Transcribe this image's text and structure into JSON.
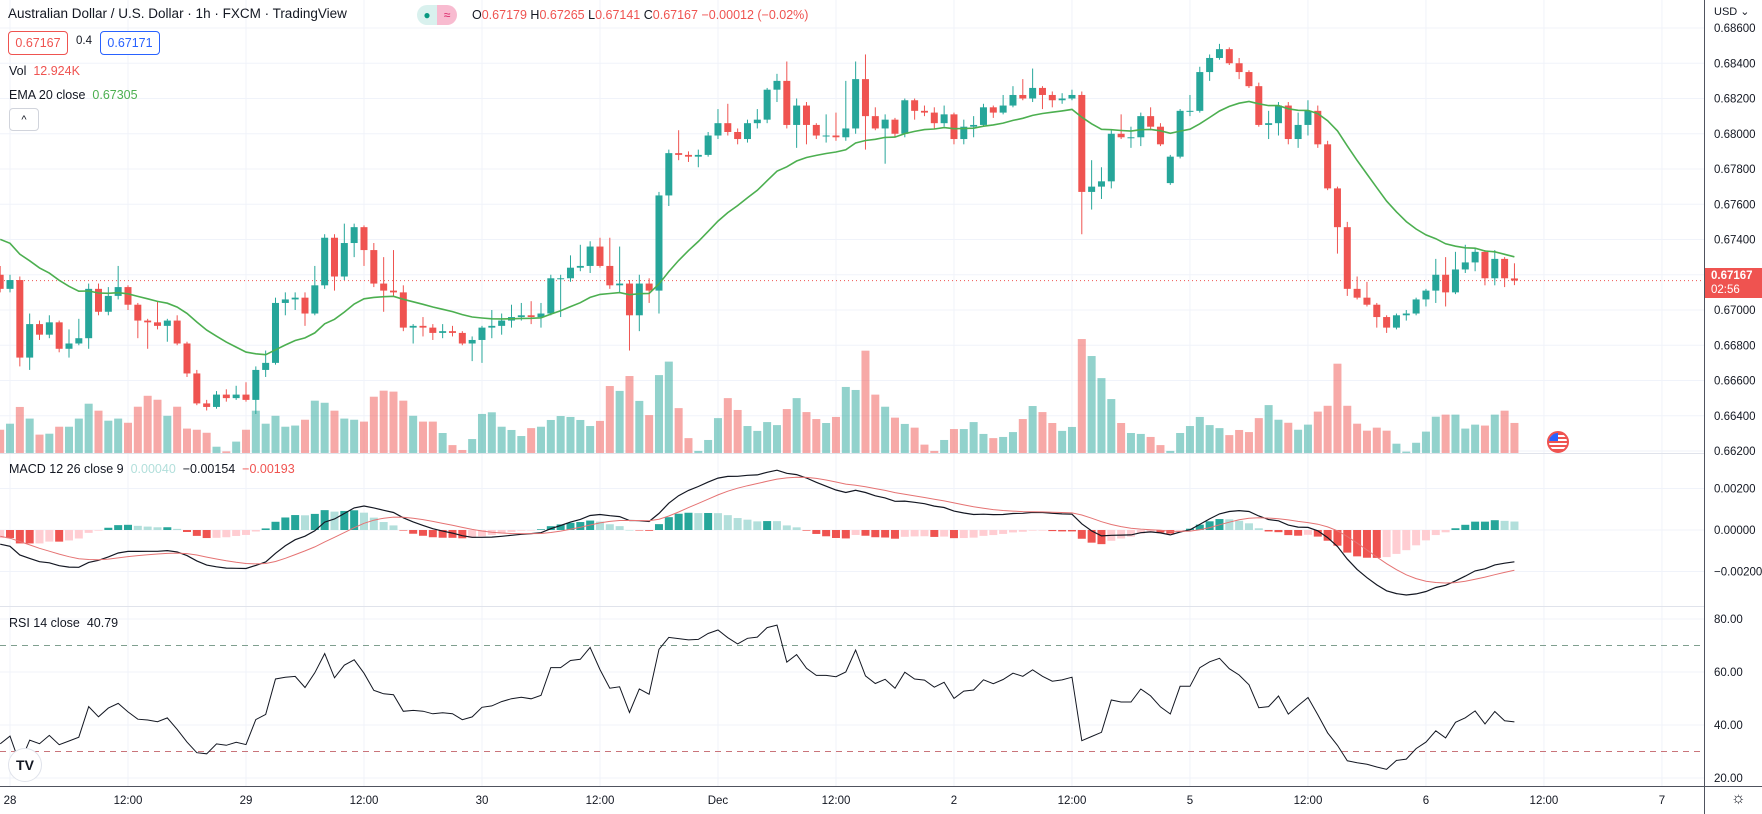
{
  "header": {
    "title": "Australian Dollar / U.S. Dollar · 1h · FXCM · TradingView",
    "status_dot": "●",
    "status_wave": "≈",
    "ohlc": {
      "o_label": "O",
      "o": "0.67179",
      "h_label": "H",
      "h": "0.67265",
      "l_label": "L",
      "l": "0.67141",
      "c_label": "C",
      "c": "0.67167",
      "change": "−0.00012 (−0.02%)"
    },
    "sell_price": "0.67167",
    "spread": "0.4",
    "buy_price": "0.67171"
  },
  "legends": {
    "vol": {
      "label": "Vol",
      "value": "12.924K"
    },
    "ema": {
      "label": "EMA 20 close",
      "value": "0.67305"
    },
    "macd": {
      "label": "MACD 12 26 close 9",
      "histogram": "0.00040",
      "macd": "−0.00154",
      "signal": "−0.00193"
    },
    "rsi": {
      "label": "RSI 14 close",
      "value": "40.79"
    },
    "collapse_icon": "^"
  },
  "price_axis": {
    "currency": "USD ⌄",
    "ticks": [
      "0.68600",
      "0.68400",
      "0.68200",
      "0.68000",
      "0.67800",
      "0.67600",
      "0.67400",
      "0.67200",
      "0.67000",
      "0.66800",
      "0.66600",
      "0.66400",
      "0.66200"
    ],
    "last_price": "0.67167",
    "countdown": "02:56"
  },
  "macd_axis": {
    "ticks": [
      "0.00200",
      "0.00000",
      "−0.00200"
    ]
  },
  "rsi_axis": {
    "ticks": [
      "80.00",
      "60.00",
      "40.00",
      "20.00"
    ],
    "upper_band": 70,
    "lower_band": 30
  },
  "time_axis": [
    {
      "label": "28",
      "bar": 1
    },
    {
      "label": "12:00",
      "bar": 13
    },
    {
      "label": "29",
      "bar": 25
    },
    {
      "label": "12:00",
      "bar": 37
    },
    {
      "label": "30",
      "bar": 49
    },
    {
      "label": "12:00",
      "bar": 61
    },
    {
      "label": "Dec",
      "bar": 73
    },
    {
      "label": "12:00",
      "bar": 85
    },
    {
      "label": "2",
      "bar": 97
    },
    {
      "label": "12:00",
      "bar": 109
    },
    {
      "label": "5",
      "bar": 121
    },
    {
      "label": "12:00",
      "bar": 133
    },
    {
      "label": "6",
      "bar": 145
    },
    {
      "label": "12:00",
      "bar": 157
    },
    {
      "label": "7",
      "bar": 169
    }
  ],
  "colors": {
    "up": "#26a69a",
    "down": "#ef5350",
    "ema": "#4caf50",
    "macd": "#131722",
    "signal": "#e57373",
    "rsi": "#131722"
  },
  "chart_data": {
    "type": "candlestick",
    "symbol": "AUD/USD",
    "interval": "1h",
    "ylim": [
      0.662,
      0.686
    ],
    "ohlc": [
      [
        0.672,
        0.6725,
        0.671,
        0.6712
      ],
      [
        0.6712,
        0.672,
        0.671,
        0.6717
      ],
      [
        0.6717,
        0.6719,
        0.6668,
        0.6673
      ],
      [
        0.6673,
        0.6698,
        0.6666,
        0.6692
      ],
      [
        0.6692,
        0.6694,
        0.6683,
        0.6686
      ],
      [
        0.6686,
        0.6697,
        0.6684,
        0.6693
      ],
      [
        0.6693,
        0.6694,
        0.6676,
        0.6678
      ],
      [
        0.6678,
        0.6689,
        0.6673,
        0.6681
      ],
      [
        0.6681,
        0.6695,
        0.668,
        0.6684
      ],
      [
        0.6684,
        0.6715,
        0.6678,
        0.6712
      ],
      [
        0.6712,
        0.6715,
        0.6697,
        0.6699
      ],
      [
        0.6699,
        0.6713,
        0.6697,
        0.6708
      ],
      [
        0.6708,
        0.6725,
        0.6706,
        0.6713
      ],
      [
        0.6713,
        0.6714,
        0.67,
        0.6703
      ],
      [
        0.6703,
        0.6704,
        0.6684,
        0.6694
      ],
      [
        0.6694,
        0.6695,
        0.6678,
        0.6693
      ],
      [
        0.6693,
        0.6705,
        0.6689,
        0.6691
      ],
      [
        0.6691,
        0.6695,
        0.6682,
        0.6694
      ],
      [
        0.6694,
        0.6697,
        0.668,
        0.6681
      ],
      [
        0.6681,
        0.6682,
        0.6662,
        0.6664
      ],
      [
        0.6664,
        0.6666,
        0.6646,
        0.6647
      ],
      [
        0.6647,
        0.6649,
        0.6643,
        0.6645
      ],
      [
        0.6645,
        0.6654,
        0.6644,
        0.6652
      ],
      [
        0.6652,
        0.6655,
        0.6648,
        0.665
      ],
      [
        0.665,
        0.6657,
        0.6649,
        0.6652
      ],
      [
        0.6652,
        0.6659,
        0.6648,
        0.6649
      ],
      [
        0.6649,
        0.6668,
        0.6641,
        0.6666
      ],
      [
        0.6666,
        0.6677,
        0.6662,
        0.667
      ],
      [
        0.667,
        0.6707,
        0.6669,
        0.6704
      ],
      [
        0.6704,
        0.671,
        0.6697,
        0.6706
      ],
      [
        0.6706,
        0.671,
        0.67,
        0.6707
      ],
      [
        0.6707,
        0.671,
        0.6691,
        0.6698
      ],
      [
        0.6698,
        0.6725,
        0.6697,
        0.6714
      ],
      [
        0.6714,
        0.6743,
        0.6712,
        0.6741
      ],
      [
        0.6741,
        0.6743,
        0.6711,
        0.6719
      ],
      [
        0.6719,
        0.6749,
        0.6717,
        0.6738
      ],
      [
        0.6738,
        0.6749,
        0.673,
        0.6747
      ],
      [
        0.6747,
        0.6748,
        0.6725,
        0.6734
      ],
      [
        0.6734,
        0.6738,
        0.6713,
        0.6715
      ],
      [
        0.6715,
        0.673,
        0.6699,
        0.6711
      ],
      [
        0.6711,
        0.6734,
        0.6708,
        0.671
      ],
      [
        0.671,
        0.6714,
        0.6688,
        0.669
      ],
      [
        0.669,
        0.6692,
        0.6681,
        0.6691
      ],
      [
        0.6691,
        0.6696,
        0.6685,
        0.669
      ],
      [
        0.669,
        0.6692,
        0.6683,
        0.6687
      ],
      [
        0.6687,
        0.6692,
        0.6684,
        0.6688
      ],
      [
        0.6688,
        0.6691,
        0.6685,
        0.6687
      ],
      [
        0.6687,
        0.6688,
        0.668,
        0.6681
      ],
      [
        0.6681,
        0.6685,
        0.6671,
        0.6683
      ],
      [
        0.6683,
        0.6691,
        0.667,
        0.669
      ],
      [
        0.669,
        0.67,
        0.6684,
        0.6691
      ],
      [
        0.6691,
        0.6698,
        0.6686,
        0.6694
      ],
      [
        0.6694,
        0.6703,
        0.669,
        0.6696
      ],
      [
        0.6696,
        0.6704,
        0.6694,
        0.6697
      ],
      [
        0.6697,
        0.6705,
        0.6692,
        0.6696
      ],
      [
        0.6696,
        0.6704,
        0.669,
        0.6698
      ],
      [
        0.6698,
        0.672,
        0.6697,
        0.6718
      ],
      [
        0.6718,
        0.672,
        0.6696,
        0.6718
      ],
      [
        0.6718,
        0.6731,
        0.6716,
        0.6724
      ],
      [
        0.6724,
        0.6737,
        0.6722,
        0.6725
      ],
      [
        0.6725,
        0.6739,
        0.6721,
        0.6736
      ],
      [
        0.6736,
        0.6741,
        0.6724,
        0.6725
      ],
      [
        0.6725,
        0.6741,
        0.6712,
        0.6714
      ],
      [
        0.6714,
        0.6736,
        0.671,
        0.6715
      ],
      [
        0.6715,
        0.6717,
        0.6677,
        0.6697
      ],
      [
        0.6697,
        0.672,
        0.6688,
        0.6715
      ],
      [
        0.6715,
        0.6718,
        0.6704,
        0.6711
      ],
      [
        0.6711,
        0.6767,
        0.6698,
        0.6765
      ],
      [
        0.6765,
        0.6791,
        0.6759,
        0.6789
      ],
      [
        0.6789,
        0.6802,
        0.6785,
        0.6788
      ],
      [
        0.6788,
        0.679,
        0.6784,
        0.6787
      ],
      [
        0.6787,
        0.6791,
        0.6781,
        0.6788
      ],
      [
        0.6788,
        0.6801,
        0.6787,
        0.6799
      ],
      [
        0.6799,
        0.6814,
        0.6797,
        0.6806
      ],
      [
        0.6806,
        0.6817,
        0.6799,
        0.6801
      ],
      [
        0.6801,
        0.6803,
        0.6794,
        0.6797
      ],
      [
        0.6797,
        0.6808,
        0.6795,
        0.6806
      ],
      [
        0.6806,
        0.6814,
        0.6803,
        0.6808
      ],
      [
        0.6808,
        0.6826,
        0.6806,
        0.6825
      ],
      [
        0.6825,
        0.6834,
        0.6818,
        0.683
      ],
      [
        0.683,
        0.6841,
        0.6803,
        0.6805
      ],
      [
        0.6805,
        0.682,
        0.6792,
        0.6816
      ],
      [
        0.6816,
        0.6818,
        0.6794,
        0.6805
      ],
      [
        0.6805,
        0.6806,
        0.6797,
        0.6799
      ],
      [
        0.6799,
        0.6811,
        0.6795,
        0.6799
      ],
      [
        0.6799,
        0.6812,
        0.6796,
        0.6798
      ],
      [
        0.6798,
        0.683,
        0.6796,
        0.6803
      ],
      [
        0.6803,
        0.6841,
        0.68,
        0.6831
      ],
      [
        0.6831,
        0.6845,
        0.6791,
        0.681
      ],
      [
        0.681,
        0.6815,
        0.6802,
        0.6803
      ],
      [
        0.6803,
        0.6811,
        0.6783,
        0.6808
      ],
      [
        0.6808,
        0.6809,
        0.6798,
        0.68
      ],
      [
        0.68,
        0.682,
        0.6798,
        0.6819
      ],
      [
        0.6819,
        0.682,
        0.6808,
        0.6813
      ],
      [
        0.6813,
        0.6816,
        0.681,
        0.6812
      ],
      [
        0.6812,
        0.6815,
        0.6803,
        0.6806
      ],
      [
        0.6806,
        0.6816,
        0.6804,
        0.6811
      ],
      [
        0.6811,
        0.6812,
        0.6794,
        0.6797
      ],
      [
        0.6797,
        0.6808,
        0.6794,
        0.6804
      ],
      [
        0.6804,
        0.681,
        0.6798,
        0.6805
      ],
      [
        0.6805,
        0.6817,
        0.6804,
        0.6815
      ],
      [
        0.6815,
        0.6816,
        0.6809,
        0.6812
      ],
      [
        0.6812,
        0.6822,
        0.6811,
        0.6816
      ],
      [
        0.6816,
        0.6827,
        0.6815,
        0.6822
      ],
      [
        0.6822,
        0.6831,
        0.6819,
        0.682
      ],
      [
        0.682,
        0.6837,
        0.6818,
        0.6826
      ],
      [
        0.6826,
        0.6827,
        0.6814,
        0.6822
      ],
      [
        0.6822,
        0.6824,
        0.6815,
        0.6819
      ],
      [
        0.6819,
        0.6823,
        0.6817,
        0.682
      ],
      [
        0.682,
        0.6825,
        0.6819,
        0.6822
      ],
      [
        0.6822,
        0.6824,
        0.6743,
        0.6767
      ],
      [
        0.6767,
        0.6785,
        0.6757,
        0.677
      ],
      [
        0.677,
        0.6781,
        0.6763,
        0.6773
      ],
      [
        0.6773,
        0.6802,
        0.6769,
        0.68
      ],
      [
        0.68,
        0.6811,
        0.6797,
        0.6798
      ],
      [
        0.6798,
        0.6804,
        0.6792,
        0.6798
      ],
      [
        0.6798,
        0.6812,
        0.6793,
        0.681
      ],
      [
        0.681,
        0.6815,
        0.6802,
        0.6804
      ],
      [
        0.6804,
        0.6806,
        0.6793,
        0.6794
      ],
      [
        0.6772,
        0.6788,
        0.6771,
        0.6787
      ],
      [
        0.6787,
        0.6814,
        0.6786,
        0.6813
      ],
      [
        0.6813,
        0.6822,
        0.681,
        0.6813
      ],
      [
        0.6813,
        0.6838,
        0.6812,
        0.6835
      ],
      [
        0.6835,
        0.6845,
        0.683,
        0.6843
      ],
      [
        0.6843,
        0.6851,
        0.6842,
        0.6848
      ],
      [
        0.6848,
        0.6849,
        0.6839,
        0.684
      ],
      [
        0.684,
        0.6843,
        0.6831,
        0.6835
      ],
      [
        0.6835,
        0.6836,
        0.6826,
        0.6827
      ],
      [
        0.6827,
        0.6829,
        0.6804,
        0.6805
      ],
      [
        0.6805,
        0.6813,
        0.6797,
        0.6806
      ],
      [
        0.6806,
        0.6818,
        0.6799,
        0.6816
      ],
      [
        0.6816,
        0.6818,
        0.6794,
        0.6797
      ],
      [
        0.6797,
        0.6812,
        0.6792,
        0.6805
      ],
      [
        0.6805,
        0.6819,
        0.6799,
        0.6813
      ],
      [
        0.6813,
        0.6816,
        0.6792,
        0.6794
      ],
      [
        0.6794,
        0.6796,
        0.6768,
        0.6769
      ],
      [
        0.6769,
        0.677,
        0.6732,
        0.6747
      ],
      [
        0.6747,
        0.675,
        0.6708,
        0.6712
      ],
      [
        0.6712,
        0.6719,
        0.6706,
        0.6707
      ],
      [
        0.6707,
        0.6716,
        0.6702,
        0.6703
      ],
      [
        0.6703,
        0.6704,
        0.669,
        0.6696
      ],
      [
        0.6696,
        0.6697,
        0.6687,
        0.669
      ],
      [
        0.669,
        0.6698,
        0.6689,
        0.6697
      ],
      [
        0.6697,
        0.67,
        0.6694,
        0.6698
      ],
      [
        0.6698,
        0.6707,
        0.6697,
        0.6706
      ],
      [
        0.6706,
        0.6712,
        0.6702,
        0.6711
      ],
      [
        0.6711,
        0.6729,
        0.6704,
        0.672
      ],
      [
        0.672,
        0.673,
        0.6702,
        0.671
      ],
      [
        0.671,
        0.6733,
        0.6709,
        0.6723
      ],
      [
        0.6723,
        0.6737,
        0.6721,
        0.6727
      ],
      [
        0.6727,
        0.6735,
        0.6722,
        0.6733
      ],
      [
        0.6733,
        0.6734,
        0.6714,
        0.6718
      ],
      [
        0.6718,
        0.6734,
        0.6714,
        0.6729
      ],
      [
        0.6729,
        0.673,
        0.6713,
        0.6718
      ],
      [
        0.67179,
        0.67265,
        0.67141,
        0.67167
      ]
    ],
    "volume_k": [
      10.0,
      12.6,
      19.8,
      14.8,
      7.9,
      8.3,
      11.3,
      11.3,
      14.8,
      21.2,
      18.2,
      13.9,
      14.8,
      13.0,
      19.9,
      24.6,
      22.9,
      16.0,
      19.9,
      10.5,
      10.0,
      8.7,
      2.7,
      0.7,
      4.9,
      10.0,
      18.2,
      12.6,
      16.0,
      11.3,
      11.8,
      14.3,
      22.5,
      21.6,
      18.2,
      14.8,
      14.3,
      13.5,
      24.2,
      26.8,
      26.4,
      22.5,
      16.0,
      13.5,
      13.5,
      8.6,
      3.4,
      1.3,
      6.0,
      16.8,
      17.5,
      11.3,
      9.9,
      7.3,
      10.7,
      11.3,
      14.2,
      15.9,
      15.5,
      14.2,
      11.6,
      13.8,
      28.8,
      26.7,
      33.1,
      22.4,
      16.3,
      33.5,
      39.3,
      19.3,
      6.4,
      0.9,
      5.6,
      15.0,
      23.6,
      18.5,
      11.6,
      9.5,
      13.3,
      12.0,
      18.9,
      23.6,
      17.6,
      14.6,
      12.9,
      15.5,
      28.4,
      27.1,
      44.0,
      25.1,
      19.9,
      15.2,
      12.5,
      10.9,
      3.6,
      0.9,
      5.6,
      10.3,
      10.3,
      13.3,
      8.2,
      6.4,
      6.9,
      9.0,
      14.6,
      20.2,
      17.6,
      12.9,
      9.5,
      11.2,
      49.0,
      41.7,
      32.2,
      23.2,
      12.9,
      8.6,
      8.2,
      6.9,
      3.4,
      0.9,
      8.6,
      11.6,
      15.5,
      12.0,
      10.7,
      7.7,
      9.9,
      9.0,
      15.0,
      20.6,
      14.3,
      13.0,
      10.0,
      12.2,
      17.8,
      20.3,
      38.4,
      20.3,
      12.6,
      9.6,
      10.9,
      9.6,
      4.0,
      0.6,
      4.4,
      9.2,
      15.6,
      16.5,
      16.5,
      10.5,
      12.2,
      11.8,
      16.5,
      18.2,
      12.924
    ],
    "indicators": [
      "EMA 20 close",
      "MACD 12 26 close 9",
      "RSI 14 close"
    ],
    "macd_ylim": [
      -0.0037,
      0.0034
    ],
    "rsi_ylim": [
      15,
      84.5
    ]
  }
}
